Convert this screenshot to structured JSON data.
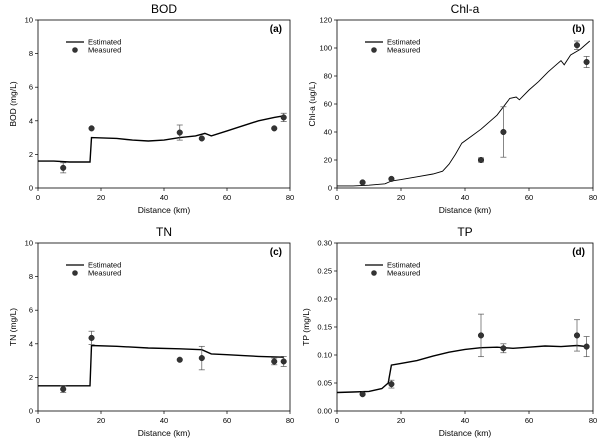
{
  "chart_data": [
    {
      "type": "line",
      "title": "BOD",
      "panel_label": "(a)",
      "xlabel": "Distance (km)",
      "ylabel": "BOD (mg/L)",
      "xlim": [
        0,
        80
      ],
      "ylim": [
        0,
        10
      ],
      "xticks": [
        "0",
        "20",
        "40",
        "60",
        "80"
      ],
      "yticks": [
        "0",
        "2",
        "4",
        "6",
        "8",
        "10"
      ],
      "legend": {
        "placement": "top-left",
        "estimated": "Estimated",
        "measured": "Measured"
      },
      "estimated": [
        [
          0,
          1.6
        ],
        [
          5,
          1.6
        ],
        [
          10,
          1.55
        ],
        [
          16.5,
          1.55
        ],
        [
          17,
          3.0
        ],
        [
          25,
          2.95
        ],
        [
          30,
          2.85
        ],
        [
          35,
          2.8
        ],
        [
          40,
          2.85
        ],
        [
          45,
          3.0
        ],
        [
          50,
          3.1
        ],
        [
          53,
          3.25
        ],
        [
          55,
          3.1
        ],
        [
          60,
          3.4
        ],
        [
          65,
          3.7
        ],
        [
          70,
          4.0
        ],
        [
          75,
          4.2
        ],
        [
          78,
          4.3
        ]
      ],
      "measured": [
        {
          "x": 8,
          "y": 1.2,
          "err": 0.3
        },
        {
          "x": 17,
          "y": 3.55,
          "err": 0
        },
        {
          "x": 45,
          "y": 3.3,
          "err": 0.45
        },
        {
          "x": 52,
          "y": 2.95,
          "err": 0
        },
        {
          "x": 75,
          "y": 3.55,
          "err": 0
        },
        {
          "x": 78,
          "y": 4.2,
          "err": 0.25
        }
      ]
    },
    {
      "type": "line",
      "title": "Chl-a",
      "panel_label": "(b)",
      "xlabel": "Distance (km)",
      "ylabel": "Chl-a (ug/L)",
      "xlim": [
        0,
        80
      ],
      "ylim": [
        0,
        120
      ],
      "xticks": [
        "0",
        "20",
        "40",
        "60",
        "80"
      ],
      "yticks": [
        "0",
        "20",
        "40",
        "60",
        "80",
        "100",
        "120"
      ],
      "legend": {
        "placement": "top-left",
        "estimated": "Estimated",
        "measured": "Measured"
      },
      "estimated": [
        [
          0,
          1.5
        ],
        [
          5,
          1.5
        ],
        [
          10,
          2
        ],
        [
          15,
          3
        ],
        [
          17,
          5
        ],
        [
          20,
          6
        ],
        [
          25,
          8
        ],
        [
          30,
          10
        ],
        [
          33,
          12
        ],
        [
          35,
          17
        ],
        [
          37,
          24
        ],
        [
          39,
          32
        ],
        [
          42,
          37
        ],
        [
          45,
          42
        ],
        [
          48,
          48
        ],
        [
          50,
          52
        ],
        [
          52,
          58
        ],
        [
          54,
          64
        ],
        [
          56,
          65
        ],
        [
          57,
          63
        ],
        [
          60,
          70
        ],
        [
          63,
          76
        ],
        [
          66,
          83
        ],
        [
          68,
          87
        ],
        [
          70,
          91
        ],
        [
          71,
          88
        ],
        [
          73,
          95
        ],
        [
          76,
          99
        ],
        [
          79,
          105
        ]
      ],
      "measured": [
        {
          "x": 8,
          "y": 4,
          "err": 0
        },
        {
          "x": 17,
          "y": 6.5,
          "err": 0
        },
        {
          "x": 45,
          "y": 20,
          "err": 1.5
        },
        {
          "x": 52,
          "y": 40,
          "err": 18
        },
        {
          "x": 75,
          "y": 102,
          "err": 3
        },
        {
          "x": 78,
          "y": 90,
          "err": 4
        }
      ]
    },
    {
      "type": "line",
      "title": "TN",
      "panel_label": "(c)",
      "xlabel": "Distance (km)",
      "ylabel": "TN (mg/L)",
      "xlim": [
        0,
        80
      ],
      "ylim": [
        0,
        10
      ],
      "xticks": [
        "0",
        "20",
        "40",
        "60",
        "80"
      ],
      "yticks": [
        "0",
        "2",
        "4",
        "6",
        "8",
        "10"
      ],
      "legend": {
        "placement": "top-left",
        "estimated": "Estimated",
        "measured": "Measured"
      },
      "estimated": [
        [
          0,
          1.5
        ],
        [
          10,
          1.5
        ],
        [
          16.5,
          1.5
        ],
        [
          17,
          3.9
        ],
        [
          25,
          3.85
        ],
        [
          35,
          3.75
        ],
        [
          45,
          3.7
        ],
        [
          52,
          3.65
        ],
        [
          55,
          3.4
        ],
        [
          60,
          3.35
        ],
        [
          65,
          3.3
        ],
        [
          70,
          3.25
        ],
        [
          78,
          3.2
        ]
      ],
      "measured": [
        {
          "x": 8,
          "y": 1.3,
          "err": 0.2
        },
        {
          "x": 17,
          "y": 4.35,
          "err": 0.4
        },
        {
          "x": 45,
          "y": 3.05,
          "err": 0
        },
        {
          "x": 52,
          "y": 3.15,
          "err": 0.7
        },
        {
          "x": 75,
          "y": 2.95,
          "err": 0.2
        },
        {
          "x": 78,
          "y": 2.95,
          "err": 0.3
        }
      ]
    },
    {
      "type": "line",
      "title": "TP",
      "panel_label": "(d)",
      "xlabel": "Distance (km)",
      "ylabel": "TP (mg/L)",
      "xlim": [
        0,
        80
      ],
      "ylim": [
        0,
        0.3
      ],
      "xticks": [
        "0",
        "20",
        "40",
        "60",
        "80"
      ],
      "yticks": [
        "0.00",
        "0.05",
        "0.10",
        "0.15",
        "0.20",
        "0.25",
        "0.30"
      ],
      "legend": {
        "placement": "top-left",
        "estimated": "Estimated",
        "measured": "Measured"
      },
      "estimated": [
        [
          0,
          0.033
        ],
        [
          5,
          0.034
        ],
        [
          10,
          0.035
        ],
        [
          14,
          0.04
        ],
        [
          16,
          0.05
        ],
        [
          17,
          0.082
        ],
        [
          20,
          0.085
        ],
        [
          25,
          0.09
        ],
        [
          30,
          0.098
        ],
        [
          35,
          0.105
        ],
        [
          40,
          0.11
        ],
        [
          45,
          0.113
        ],
        [
          50,
          0.114
        ],
        [
          55,
          0.112
        ],
        [
          60,
          0.114
        ],
        [
          65,
          0.116
        ],
        [
          70,
          0.115
        ],
        [
          75,
          0.117
        ],
        [
          78,
          0.115
        ]
      ],
      "measured": [
        {
          "x": 8,
          "y": 0.03,
          "err": 0
        },
        {
          "x": 17,
          "y": 0.048,
          "err": 0.007
        },
        {
          "x": 45,
          "y": 0.135,
          "err": 0.038
        },
        {
          "x": 52,
          "y": 0.112,
          "err": 0.008
        },
        {
          "x": 75,
          "y": 0.135,
          "err": 0.028
        },
        {
          "x": 78,
          "y": 0.115,
          "err": 0.018
        }
      ]
    }
  ]
}
